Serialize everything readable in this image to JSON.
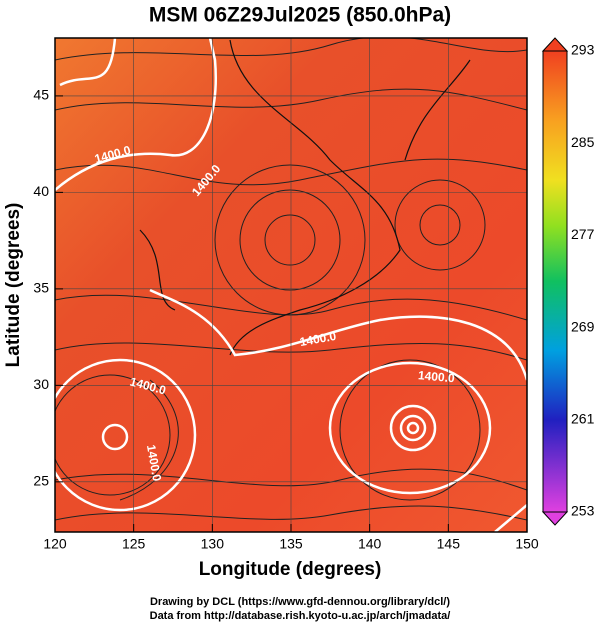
{
  "title": "MSM 06Z29Jul2025 (850.0hPa)",
  "x_axis": {
    "label": "Longitude (degrees)",
    "lim": [
      120,
      150
    ],
    "ticks": [
      120,
      125,
      130,
      135,
      140,
      145,
      150
    ]
  },
  "y_axis": {
    "label": "Latitude  (degrees)",
    "lim": [
      22.4,
      48
    ],
    "ticks": [
      25,
      30,
      35,
      40,
      45
    ]
  },
  "colorbar": {
    "lim": [
      253,
      293
    ],
    "ticks": [
      253,
      261,
      269,
      277,
      285,
      293
    ]
  },
  "contour_labels": [
    "1400.0",
    "1400.0",
    "1400.0",
    "1400.0",
    "1400.0",
    "1400.0"
  ],
  "credits": [
    "Drawing by DCL (https://www.gfd-dennou.org/library/dcl/)",
    "Data from http://database.rish.kyoto-u.ac.jp/arch/jmadata/"
  ]
}
